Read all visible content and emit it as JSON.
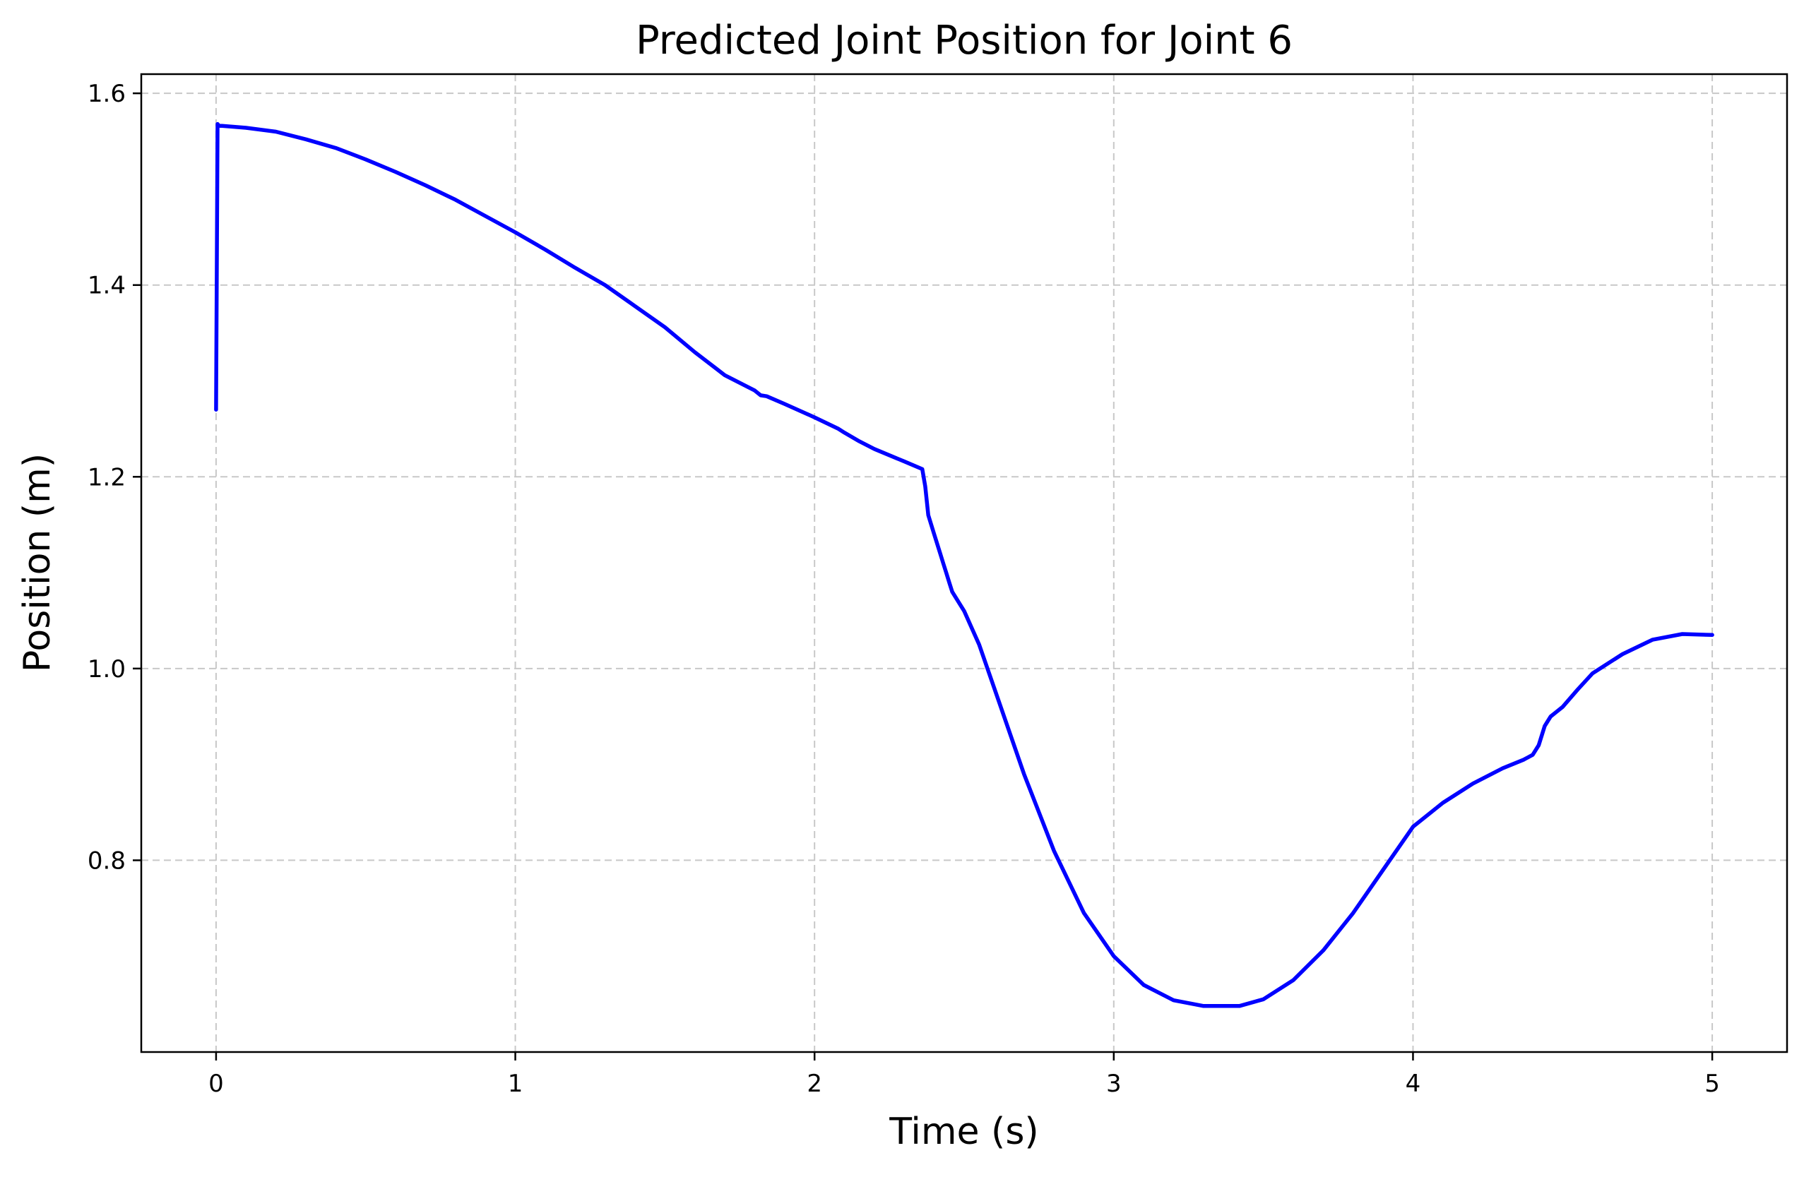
{
  "chart_data": {
    "type": "line",
    "title": "Predicted Joint Position for Joint 6",
    "xlabel": "Time (s)",
    "ylabel": "Position (m)",
    "xlim": [
      -0.25,
      5.25
    ],
    "ylim": [
      0.6,
      1.62
    ],
    "xticks": [
      0,
      1,
      2,
      3,
      4,
      5
    ],
    "xtick_labels": [
      "0",
      "1",
      "2",
      "3",
      "4",
      "5"
    ],
    "yticks": [
      0.8,
      1.0,
      1.2,
      1.4,
      1.6
    ],
    "ytick_labels": [
      "0.8",
      "1.0",
      "1.2",
      "1.4",
      "1.6"
    ],
    "grid": true,
    "grid_style": "dashed",
    "legend": "none",
    "series": [
      {
        "color": "#0000ff",
        "x": [
          0,
          0.005,
          0.01,
          0.02,
          0.1,
          0.2,
          0.3,
          0.4,
          0.5,
          0.6,
          0.7,
          0.8,
          0.9,
          1.0,
          1.1,
          1.2,
          1.3,
          1.4,
          1.5,
          1.6,
          1.7,
          1.8,
          1.82,
          1.84,
          1.9,
          2.0,
          2.08,
          2.1,
          2.15,
          2.2,
          2.3,
          2.36,
          2.37,
          2.38,
          2.39,
          2.4,
          2.42,
          2.43,
          2.44,
          2.45,
          2.46,
          2.5,
          2.55,
          2.6,
          2.7,
          2.8,
          2.9,
          3.0,
          3.1,
          3.2,
          3.3,
          3.4,
          3.42,
          3.5,
          3.6,
          3.7,
          3.8,
          3.9,
          4.0,
          4.1,
          4.2,
          4.3,
          4.37,
          4.4,
          4.42,
          4.44,
          4.46,
          4.48,
          4.5,
          4.55,
          4.6,
          4.7,
          4.8,
          4.9,
          5.0
        ],
        "y": [
          1.27,
          1.568,
          1.566,
          1.566,
          1.564,
          1.56,
          1.552,
          1.543,
          1.531,
          1.518,
          1.504,
          1.489,
          1.472,
          1.455,
          1.437,
          1.418,
          1.4,
          1.378,
          1.356,
          1.33,
          1.306,
          1.29,
          1.285,
          1.284,
          1.276,
          1.262,
          1.25,
          1.246,
          1.237,
          1.229,
          1.216,
          1.208,
          1.19,
          1.16,
          1.15,
          1.14,
          1.12,
          1.11,
          1.1,
          1.09,
          1.08,
          1.06,
          1.025,
          0.98,
          0.89,
          0.81,
          0.745,
          0.7,
          0.67,
          0.654,
          0.648,
          0.648,
          0.648,
          0.655,
          0.675,
          0.706,
          0.745,
          0.79,
          0.835,
          0.86,
          0.88,
          0.896,
          0.905,
          0.91,
          0.92,
          0.94,
          0.95,
          0.955,
          0.96,
          0.978,
          0.995,
          1.015,
          1.03,
          1.036,
          1.035
        ]
      }
    ]
  }
}
